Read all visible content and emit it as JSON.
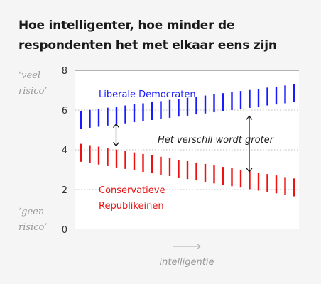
{
  "title_lines": [
    "Hoe intelligenter, hoe minder de",
    "respondenten het met elkaar eens zijn"
  ],
  "colors": {
    "liberal": "#1a1aff",
    "conservative": "#ee1111",
    "axis_text": "#333333",
    "muted": "#999999",
    "grid": "#bbbbbb",
    "plot_bg": "#ffffff",
    "page_bg": "#f5f5f5"
  },
  "chart_data": {
    "type": "line",
    "ylim": [
      0,
      8
    ],
    "yticks": [
      0,
      2,
      4,
      6,
      8
    ],
    "y_top_label": [
      "‘veel",
      "risico’"
    ],
    "y_bottom_label": [
      "‘geen",
      "risico’"
    ],
    "xlabel": "intelligentie",
    "grid": true,
    "series": [
      {
        "name": "Liberale Democraten",
        "color_key": "liberal",
        "marks": "vertical-bars",
        "bar_half_height": 0.45,
        "values": [
          5.5,
          5.56,
          5.61,
          5.67,
          5.72,
          5.78,
          5.84,
          5.89,
          5.95,
          6.0,
          6.06,
          6.12,
          6.17,
          6.23,
          6.28,
          6.34,
          6.4,
          6.45,
          6.51,
          6.56,
          6.62,
          6.68,
          6.73,
          6.79,
          6.84
        ]
      },
      {
        "name": "Conservatieve Republikeinen",
        "color_key": "conservative",
        "marks": "vertical-bars",
        "bar_half_height": 0.45,
        "values": [
          3.85,
          3.78,
          3.71,
          3.63,
          3.56,
          3.49,
          3.42,
          3.34,
          3.27,
          3.2,
          3.13,
          3.05,
          2.98,
          2.91,
          2.84,
          2.76,
          2.69,
          2.62,
          2.55,
          2.47,
          2.4,
          2.33,
          2.26,
          2.18,
          2.11
        ]
      }
    ],
    "series_labels": {
      "liberal": [
        "Liberale Democraten"
      ],
      "conservative": [
        "Conservatieve",
        "Republikeinen"
      ]
    },
    "annotation": "Het verschil wordt groter",
    "arrows": [
      {
        "y_from": 4.2,
        "y_to": 5.3,
        "at_index": 5
      },
      {
        "y_from": 2.9,
        "y_to": 5.7,
        "at_index": 20
      }
    ]
  }
}
